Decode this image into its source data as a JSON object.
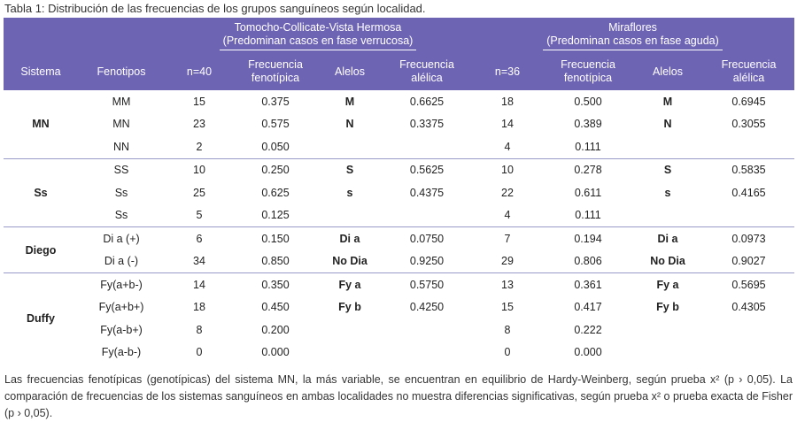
{
  "caption": "Tabla 1: Distribución de las frecuencias de los grupos sanguíneos según localidad.",
  "header": {
    "loc1": {
      "line1": "Tomocho-Collicate-Vista Hermosa",
      "line2": "(Predominan casos en fase verrucosa)"
    },
    "loc2": {
      "line1": "Miraflores",
      "line2": "(Predominan casos en fase aguda)"
    },
    "sistema": "Sistema",
    "fenotipos": "Fenotipos",
    "n1": "n=40",
    "frec_fen1": {
      "l1": "Frecuencia",
      "l2": "fenotípica"
    },
    "alelos1": "Alelos",
    "frec_al1": {
      "l1": "Frecuencia",
      "l2": "alélica"
    },
    "n2": "n=36",
    "frec_fen2": {
      "l1": "Frecuencia",
      "l2": "fenotípica"
    },
    "alelos2": "Alelos",
    "frec_al2": {
      "l1": "Frecuencia",
      "l2": "alélica"
    }
  },
  "groups": [
    {
      "sistema": "MN",
      "rows": [
        {
          "fen": "MM",
          "n1": "15",
          "f1": "0.375",
          "a1": "M",
          "fa1": "0.6625",
          "n2": "18",
          "f2": "0.500",
          "a2": "M",
          "fa2": "0.6945"
        },
        {
          "fen": "MN",
          "n1": "23",
          "f1": "0.575",
          "a1": "N",
          "fa1": "0.3375",
          "n2": "14",
          "f2": "0.389",
          "a2": "N",
          "fa2": "0.3055"
        },
        {
          "fen": "NN",
          "n1": "2",
          "f1": "0.050",
          "a1": "",
          "fa1": "",
          "n2": "4",
          "f2": "0.111",
          "a2": "",
          "fa2": ""
        }
      ]
    },
    {
      "sistema": "Ss",
      "rows": [
        {
          "fen": "SS",
          "n1": "10",
          "f1": "0.250",
          "a1": "S",
          "fa1": "0.5625",
          "n2": "10",
          "f2": "0.278",
          "a2": "S",
          "fa2": "0.5835"
        },
        {
          "fen": "Ss",
          "n1": "25",
          "f1": "0.625",
          "a1": "s",
          "fa1": "0.4375",
          "n2": "22",
          "f2": "0.611",
          "a2": "s",
          "fa2": "0.4165"
        },
        {
          "fen": "Ss",
          "n1": "5",
          "f1": "0.125",
          "a1": "",
          "fa1": "",
          "n2": "4",
          "f2": "0.111",
          "a2": "",
          "fa2": ""
        }
      ]
    },
    {
      "sistema": "Diego",
      "rows": [
        {
          "fen": "Di a (+)",
          "n1": "6",
          "f1": "0.150",
          "a1": "Di a",
          "fa1": "0.0750",
          "n2": "7",
          "f2": "0.194",
          "a2": "Di a",
          "fa2": "0.0973"
        },
        {
          "fen": "Di a (-)",
          "n1": "34",
          "f1": "0.850",
          "a1": "No Dia",
          "fa1": "0.9250",
          "n2": "29",
          "f2": "0.806",
          "a2": "No Dia",
          "fa2": "0.9027"
        }
      ]
    },
    {
      "sistema": "Duffy",
      "rows": [
        {
          "fen": "Fy(a+b-)",
          "n1": "14",
          "f1": "0.350",
          "a1": "Fy a",
          "fa1": "0.5750",
          "n2": "13",
          "f2": "0.361",
          "a2": "Fy a",
          "fa2": "0.5695"
        },
        {
          "fen": "Fy(a+b+)",
          "n1": "18",
          "f1": "0.450",
          "a1": "Fy b",
          "fa1": "0.4250",
          "n2": "15",
          "f2": "0.417",
          "a2": "Fy b",
          "fa2": "0.4305"
        },
        {
          "fen": "Fy(a-b+)",
          "n1": "8",
          "f1": "0.200",
          "a1": "",
          "fa1": "",
          "n2": "8",
          "f2": "0.222",
          "a2": "",
          "fa2": ""
        },
        {
          "fen": "Fy(a-b-)",
          "n1": "0",
          "f1": "0.000",
          "a1": "",
          "fa1": "",
          "n2": "0",
          "f2": "0.000",
          "a2": "",
          "fa2": ""
        }
      ]
    }
  ],
  "note": "Las frecuencias fenotípicas (genotípicas) del sistema MN, la más variable, se encuentran en equilibrio de Hardy-Weinberg, según prueba x² (p › 0,05). La comparación de frecuencias de los sistemas sanguíneos en ambas localidades no muestra diferencias significativas, según prueba x² o prueba exacta de Fisher (p › 0,05)."
}
